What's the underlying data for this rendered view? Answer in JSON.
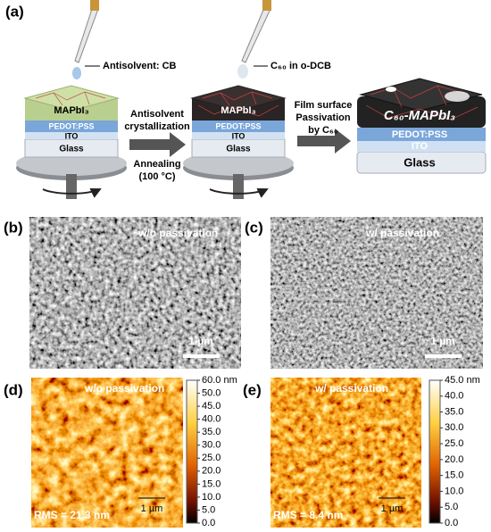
{
  "panel_a": {
    "label": "(a)",
    "step1": {
      "reagent": "Antisolvent: CB",
      "layers": [
        "MAPbI₃",
        "PEDOT:PSS",
        "ITO",
        "Glass"
      ]
    },
    "arrow1": {
      "above": [
        "Antisolvent",
        "crystallization"
      ],
      "below": [
        "Annealing",
        "(100 °C)"
      ]
    },
    "step2": {
      "reagent": "C₆₀ in o-DCB",
      "layers": [
        "MAPbI₃",
        "PEDOT:PSS",
        "ITO",
        "Glass"
      ]
    },
    "arrow2": {
      "above": [
        "Film surface",
        "Passivation",
        "by C₆₀"
      ]
    },
    "step3": {
      "layers": [
        "C₆₀-MAPbI₃",
        "PEDOT:PSS",
        "ITO",
        "Glass"
      ]
    }
  },
  "panel_b": {
    "label": "(b)",
    "title": "w/o passivation",
    "scale": "1 µm"
  },
  "panel_c": {
    "label": "(c)",
    "title": "w/ passivation",
    "scale": "1 µm"
  },
  "panel_d": {
    "label": "(d)",
    "title": "w/o passivation",
    "rms": "RMS = 21.3 nm",
    "scale": "1 µm",
    "colorbar": [
      "60.0 nm",
      "50.0",
      "45.0",
      "40.0",
      "35.0",
      "30.0",
      "25.0",
      "20.0",
      "15.0",
      "10.0",
      "5.0",
      "0.0"
    ]
  },
  "panel_e": {
    "label": "(e)",
    "title": "w/ passivation",
    "rms": "RMS = 8.4 nm",
    "scale": "1 µm",
    "colorbar": [
      "45.0 nm",
      "40.0",
      "35.0",
      "30.0",
      "25.0",
      "20.0",
      "15.0",
      "10.0",
      "5.0",
      "0.0"
    ]
  }
}
